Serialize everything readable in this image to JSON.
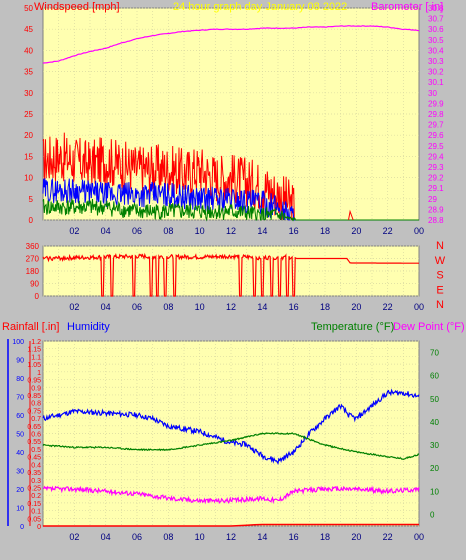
{
  "header": {
    "left_label": "Windspeed [mph]",
    "center_label": "24 hour graph day   January 08 2022",
    "right_label": "Barometer [ in]"
  },
  "compass": [
    "N",
    "W",
    "S",
    "E",
    "N"
  ],
  "lower_header": {
    "rainfall_label": "Rainfall [.in]",
    "humidity_label": "Humidity",
    "temperature_label": "Temperature (°F)",
    "dewpoint_label": "Dew Point (°F)"
  },
  "colors": {
    "background": "#c0c0c0",
    "plot_bg": "#ffffb0",
    "wind": "#ff0000",
    "wind_avg": "#0000ff",
    "wind_min": "#008000",
    "barometer": "#ff00ff",
    "direction": "#ff0000",
    "humidity": "#0000ff",
    "temperature": "#008000",
    "dewpoint": "#ff00ff",
    "rain": "#ff0000",
    "title": "#ffff00"
  },
  "chart_data": [
    {
      "type": "line",
      "title": "24 hour graph day   January 08 2022",
      "x_ticks": [
        "02",
        "04",
        "06",
        "08",
        "10",
        "12",
        "14",
        "16",
        "18",
        "20",
        "22",
        "00"
      ],
      "xlim": [
        0,
        24
      ],
      "left_axis": {
        "label": "Windspeed [mph]",
        "ylim": [
          0,
          50
        ],
        "ticks": [
          "0",
          "5",
          "10",
          "15",
          "20",
          "25",
          "30",
          "35",
          "40",
          "45",
          "50"
        ]
      },
      "right_axis": {
        "label": "Barometer [ in]",
        "ylim": [
          28.8,
          30.8
        ],
        "ticks": [
          "28.8",
          "28.9",
          "29",
          "29.1",
          "29.2",
          "29.3",
          "29.4",
          "29.5",
          "29.6",
          "29.7",
          "29.8",
          "29.9",
          "30",
          "30.1",
          "30.2",
          "30.3",
          "30.4",
          "30.5",
          "30.6",
          "30.7",
          "30.8"
        ]
      },
      "grid": true,
      "series": [
        {
          "name": "Windspeed [mph]",
          "axis": "left",
          "x": [
            0,
            1,
            2,
            3,
            4,
            5,
            6,
            7,
            8,
            9,
            10,
            11,
            12,
            13,
            14,
            15,
            16,
            17,
            18,
            19,
            20,
            21,
            22,
            23,
            24
          ],
          "y": [
            14,
            15,
            14,
            13,
            14,
            13,
            12,
            12,
            12,
            11,
            12,
            10,
            10,
            9,
            8,
            6,
            3,
            0,
            0,
            0,
            1,
            0,
            0,
            0,
            0
          ]
        },
        {
          "name": "Wind average",
          "axis": "left",
          "x": [
            0,
            2,
            4,
            6,
            8,
            10,
            12,
            14,
            15,
            16,
            17,
            24
          ],
          "y": [
            7,
            7,
            6,
            6,
            6,
            5,
            5,
            4,
            3,
            1,
            0,
            0
          ]
        },
        {
          "name": "Wind minimum",
          "axis": "left",
          "x": [
            0,
            2,
            4,
            6,
            8,
            10,
            12,
            14,
            15,
            16,
            17,
            24
          ],
          "y": [
            3,
            3,
            3,
            2,
            2,
            2,
            2,
            1,
            1,
            0,
            0,
            0
          ]
        },
        {
          "name": "Barometer [ in]",
          "axis": "right",
          "x": [
            0,
            1,
            2,
            3,
            4,
            5,
            6,
            7,
            8,
            9,
            10,
            11,
            12,
            13,
            14,
            15,
            16,
            17,
            18,
            19,
            20,
            21,
            22,
            23,
            24
          ],
          "y": [
            30.28,
            30.3,
            30.35,
            30.39,
            30.42,
            30.47,
            30.51,
            30.54,
            30.56,
            30.58,
            30.59,
            30.6,
            30.6,
            30.6,
            30.61,
            30.61,
            30.61,
            30.62,
            30.62,
            30.63,
            30.63,
            30.63,
            30.62,
            30.6,
            30.59
          ]
        }
      ]
    },
    {
      "type": "line",
      "title": "",
      "ylim": [
        0,
        360
      ],
      "y_ticks": [
        "0",
        "90",
        "180",
        "270",
        "360"
      ],
      "x_ticks": [
        "02",
        "04",
        "06",
        "08",
        "10",
        "12",
        "14",
        "16",
        "18",
        "20",
        "22",
        "00"
      ],
      "xlim": [
        0,
        24
      ],
      "series": [
        {
          "name": "Wind direction",
          "x": [
            0,
            2,
            4,
            6,
            8,
            10,
            12,
            14,
            16,
            16.2,
            19.4,
            19.6,
            24
          ],
          "y": [
            270,
            275,
            280,
            285,
            282,
            280,
            285,
            275,
            280,
            270,
            270,
            238,
            236
          ]
        }
      ],
      "drops_to_zero_at": [
        3.8,
        4.4,
        5.8,
        6.9,
        7.3,
        7.8,
        8.4,
        12.6,
        13.5,
        14.0,
        14.6,
        15.1,
        15.6,
        16.0
      ]
    },
    {
      "type": "line",
      "title": "",
      "xlim": [
        0,
        24
      ],
      "x_ticks": [
        "02",
        "04",
        "06",
        "08",
        "10",
        "12",
        "14",
        "16",
        "18",
        "20",
        "22",
        "00"
      ],
      "axes": {
        "humidity": {
          "label": "Humidity",
          "ylim": [
            0,
            100
          ],
          "ticks": [
            "0",
            "10",
            "20",
            "30",
            "40",
            "50",
            "60",
            "70",
            "80",
            "90",
            "100"
          ]
        },
        "rainfall": {
          "label": "Rainfall [.in]",
          "ylim": [
            0,
            1.2
          ],
          "ticks": [
            "0",
            "0.05",
            "0.1",
            "0.15",
            "0.2",
            "0.25",
            "0.3",
            "0.35",
            "0.4",
            "0.45",
            "0.5",
            "0.55",
            "0.6",
            "0.65",
            "0.7",
            "0.75",
            "0.8",
            "0.85",
            "0.9",
            "0.95",
            "1",
            "1.05",
            "1.1",
            "1.15",
            "1.2"
          ]
        },
        "temperature": {
          "label": "Temperature (°F)",
          "ylim": [
            -5,
            75
          ],
          "ticks": [
            "0",
            "10",
            "20",
            "30",
            "40",
            "50",
            "60",
            "70"
          ]
        }
      },
      "series": [
        {
          "name": "Humidity",
          "axis": "humidity",
          "x": [
            0,
            2,
            4,
            6,
            7,
            8,
            10,
            12,
            13,
            14,
            15,
            16,
            17,
            18,
            19,
            19.5,
            20,
            21,
            22,
            23,
            24
          ],
          "y": [
            58,
            62,
            61,
            60,
            58,
            54,
            51,
            45,
            44,
            38,
            35,
            40,
            50,
            58,
            65,
            60,
            58,
            65,
            72,
            72,
            70
          ]
        },
        {
          "name": "Temperature (°F)",
          "axis": "temperature",
          "x": [
            0,
            2,
            4,
            6,
            8,
            10,
            12,
            14,
            16,
            18,
            20,
            22,
            23,
            24
          ],
          "y": [
            30,
            29,
            29,
            28,
            28,
            30,
            32,
            35,
            35,
            30,
            27,
            25,
            24,
            26
          ]
        },
        {
          "name": "Dew Point (°F)",
          "axis": "temperature",
          "x": [
            0,
            2,
            4,
            6,
            8,
            10,
            12,
            14,
            15,
            16,
            18,
            20,
            22,
            24
          ],
          "y": [
            11,
            11,
            10,
            9,
            7,
            6,
            6,
            7,
            6,
            10,
            11,
            11,
            10,
            11
          ]
        },
        {
          "name": "Rainfall [.in]",
          "axis": "rainfall",
          "x": [
            0,
            12,
            14,
            18,
            24
          ],
          "y": [
            0,
            0,
            0.01,
            0.01,
            0.01
          ]
        }
      ]
    }
  ]
}
